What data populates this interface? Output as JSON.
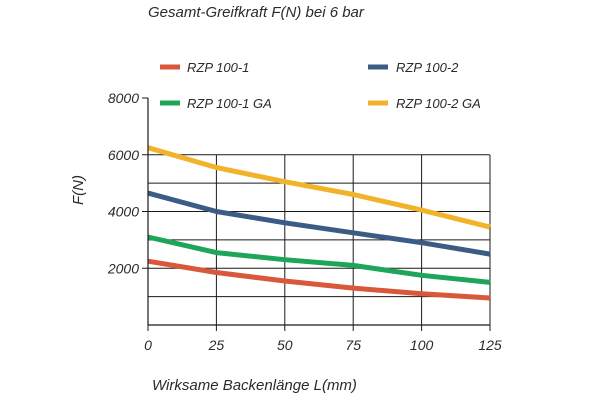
{
  "chart_data": {
    "type": "line",
    "title": "Gesamt-Greifkraft F(N) bei 6 bar",
    "xlabel": "Wirksame Backenlänge L(mm)",
    "ylabel": "F(N)",
    "x": [
      0,
      25,
      50,
      75,
      100,
      125
    ],
    "x_tick_labels": [
      "0",
      "25",
      "50",
      "75",
      "100",
      "125"
    ],
    "y_tick_values": [
      2000,
      4000,
      6000,
      8000
    ],
    "y_tick_labels": [
      "2000",
      "4000",
      "6000",
      "8000"
    ],
    "xlim": [
      0,
      125
    ],
    "ylim": [
      0,
      8000
    ],
    "grid": true,
    "legend_position": "top",
    "series": [
      {
        "name": "RZP 100-1",
        "color": "#d9573a",
        "values": [
          2250,
          1850,
          1550,
          1300,
          1100,
          950
        ]
      },
      {
        "name": "RZP 100-2",
        "color": "#3b5d85",
        "values": [
          4650,
          4000,
          3600,
          3250,
          2900,
          2500
        ]
      },
      {
        "name": "RZP 100-1 GA",
        "color": "#1fa55a",
        "values": [
          3100,
          2550,
          2300,
          2100,
          1750,
          1500
        ]
      },
      {
        "name": "RZP 100-2 GA",
        "color": "#f2b22a",
        "values": [
          6250,
          5550,
          5050,
          4600,
          4050,
          3450
        ]
      }
    ]
  }
}
